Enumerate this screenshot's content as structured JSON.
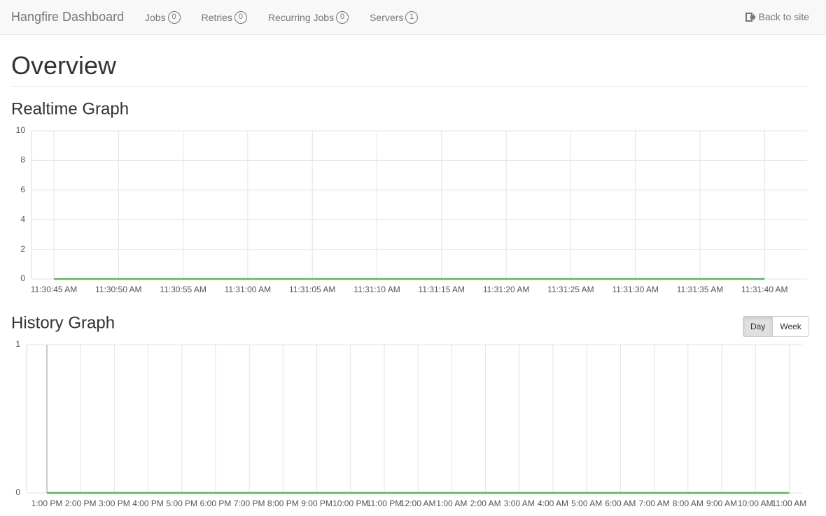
{
  "navbar": {
    "brand": "Hangfire Dashboard",
    "items": [
      {
        "label": "Jobs",
        "count": 0
      },
      {
        "label": "Retries",
        "count": 0
      },
      {
        "label": "Recurring Jobs",
        "count": 0
      },
      {
        "label": "Servers",
        "count": 1
      }
    ],
    "back": "Back to site"
  },
  "page_title": "Overview",
  "history_buttons": [
    "Day",
    "Week"
  ],
  "chart_data": [
    {
      "type": "line",
      "title": "Realtime Graph",
      "categories": [
        "11:30:45 AM",
        "11:30:50 AM",
        "11:30:55 AM",
        "11:31:00 AM",
        "11:31:05 AM",
        "11:31:10 AM",
        "11:31:15 AM",
        "11:31:20 AM",
        "11:31:25 AM",
        "11:31:30 AM",
        "11:31:35 AM",
        "11:31:40 AM"
      ],
      "series": [
        {
          "color": "#62b35f",
          "values": [
            0,
            0,
            0,
            0,
            0,
            0,
            0,
            0,
            0,
            0,
            0,
            0
          ]
        }
      ],
      "ylim": [
        0,
        10
      ],
      "yticks": [
        0,
        2,
        4,
        6,
        8,
        10
      ],
      "grid": true
    },
    {
      "type": "line",
      "title": "History Graph",
      "categories": [
        "1:00 PM",
        "2:00 PM",
        "3:00 PM",
        "4:00 PM",
        "5:00 PM",
        "6:00 PM",
        "7:00 PM",
        "8:00 PM",
        "9:00 PM",
        "10:00 PM",
        "11:00 PM",
        "12:00 AM",
        "1:00 AM",
        "2:00 AM",
        "3:00 AM",
        "4:00 AM",
        "5:00 AM",
        "6:00 AM",
        "7:00 AM",
        "8:00 AM",
        "9:00 AM",
        "10:00 AM",
        "11:00 AM"
      ],
      "series": [
        {
          "color": "#62b35f",
          "values": [
            0,
            0,
            0,
            0,
            0,
            0,
            0,
            0,
            0,
            0,
            0,
            0,
            0,
            0,
            0,
            0,
            0,
            0,
            0,
            0,
            0,
            0,
            0
          ]
        }
      ],
      "ylim": [
        0,
        1
      ],
      "yticks": [
        0,
        1
      ],
      "grid": true
    }
  ]
}
